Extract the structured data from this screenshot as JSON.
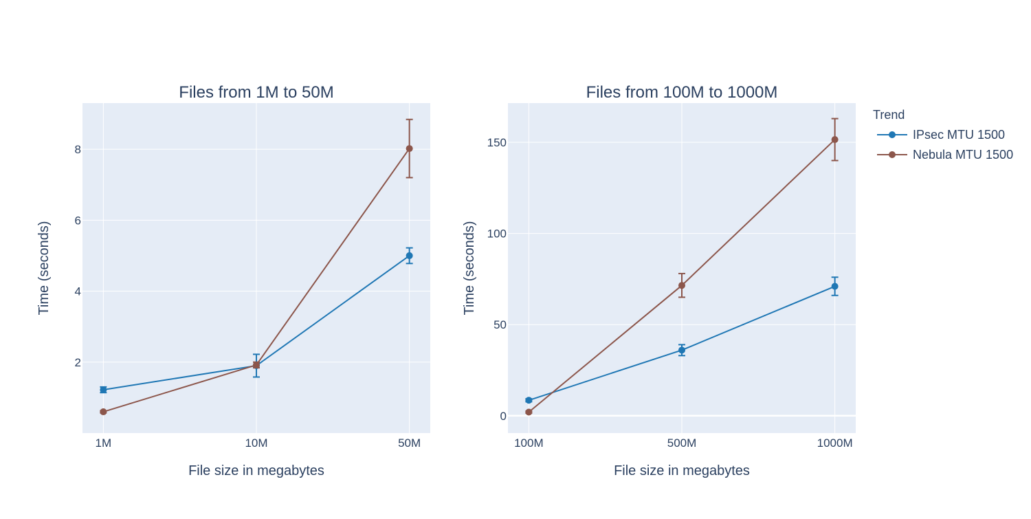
{
  "colors": {
    "plot_bg": "#e5ecf6",
    "grid": "#ffffff",
    "text": "#2a3f5f",
    "series": [
      "#1f77b4",
      "#8c564b"
    ]
  },
  "legend": {
    "title": "Trend",
    "placement": "top-right",
    "items": [
      "IPsec MTU 1500",
      "Nebula MTU 1500"
    ]
  },
  "chart_data": [
    {
      "type": "line",
      "title": "Files from 1M to 50M",
      "xlabel": "File size in megabytes",
      "ylabel": "Time (seconds)",
      "categories": [
        "1M",
        "10M",
        "50M"
      ],
      "ylim": [
        0,
        9.3
      ],
      "yticks": [
        2,
        4,
        6,
        8
      ],
      "grid": true,
      "series": [
        {
          "name": "IPsec MTU 1500",
          "values": [
            1.22,
            1.9,
            5.0
          ],
          "error": [
            0.08,
            0.32,
            0.22
          ]
        },
        {
          "name": "Nebula MTU 1500",
          "values": [
            0.6,
            1.92,
            8.02
          ],
          "error": [
            0.03,
            0.08,
            0.82
          ]
        }
      ]
    },
    {
      "type": "line",
      "title": "Files from 100M to 1000M",
      "xlabel": "File size in megabytes",
      "ylabel": "Time (seconds)",
      "categories": [
        "100M",
        "500M",
        "1000M"
      ],
      "ylim": [
        -9.5,
        171.5
      ],
      "yticks": [
        0,
        50,
        100,
        150
      ],
      "grid": true,
      "series": [
        {
          "name": "IPsec MTU 1500",
          "values": [
            8.5,
            36,
            71
          ],
          "error": [
            0.8,
            3,
            5
          ]
        },
        {
          "name": "Nebula MTU 1500",
          "values": [
            2,
            71.5,
            151.5
          ],
          "error": [
            0.5,
            6.5,
            11.5
          ]
        }
      ]
    }
  ]
}
